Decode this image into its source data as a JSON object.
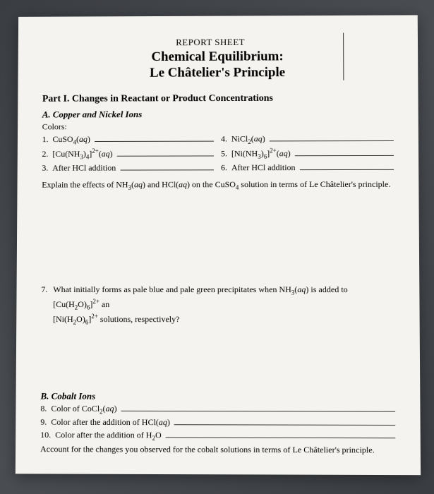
{
  "header": {
    "report_label": "REPORT SHEET",
    "title_main": "Chemical Equilibrium:",
    "title_sub": "Le Châtelier's Principle"
  },
  "partI": {
    "title": "Part I. Changes in Reactant or Product Concentrations",
    "sectionA": {
      "heading": "A. Copper and Nickel Ions",
      "colors_label": "Colors:",
      "left_items": [
        {
          "num": "1.",
          "html": "CuSO<span class='sub'>4</span>(<i>aq</i>)"
        },
        {
          "num": "2.",
          "html": "[Cu(NH<span class='sub'>3</span>)<span class='sub'>4</span>]<span class='sup'>2+</span>(<i>aq</i>)"
        },
        {
          "num": "3.",
          "html": "After HCl addition"
        }
      ],
      "right_items": [
        {
          "num": "4.",
          "html": "NiCl<span class='sub'>2</span>(<i>aq</i>)"
        },
        {
          "num": "5.",
          "html": "[Ni(NH<span class='sub'>3</span>)<span class='sub'>6</span>]<span class='sup'>2+</span>(<i>aq</i>)"
        },
        {
          "num": "6.",
          "html": "After HCl addition"
        }
      ],
      "explain_html": "Explain the effects of NH<span class='sub'>3</span>(<i>aq</i>) and HCl(<i>aq</i>) on the CuSO<span class='sub'>4</span> solution in terms of Le Châtelier's principle."
    },
    "q7": {
      "num": "7.",
      "html": "What initially forms as pale blue and pale green precipitates when NH<span class='sub'>3</span>(<i>aq</i>) is added to [Cu(H<span class='sub'>2</span>O)<span class='sub'>6</span>]<span class='sup'>2+</span> an<br>[Ni(H<span class='sub'>2</span>O)<span class='sub'>6</span>]<span class='sup'>2+</span> solutions, respectively?"
    },
    "sectionB": {
      "heading": "B. Cobalt Ions",
      "items": [
        {
          "num": "8.",
          "html": "Color of CoCl<span class='sub'>2</span>(<i>aq</i>)"
        },
        {
          "num": "9.",
          "html": "Color after the addition of HCl(<i>aq</i>)"
        },
        {
          "num": "10.",
          "html": "Color after the addition of H<span class='sub'>2</span>O"
        }
      ],
      "account_text": "Account for the changes you observed for the cobalt solutions in terms of Le Châtelier's principle."
    }
  }
}
